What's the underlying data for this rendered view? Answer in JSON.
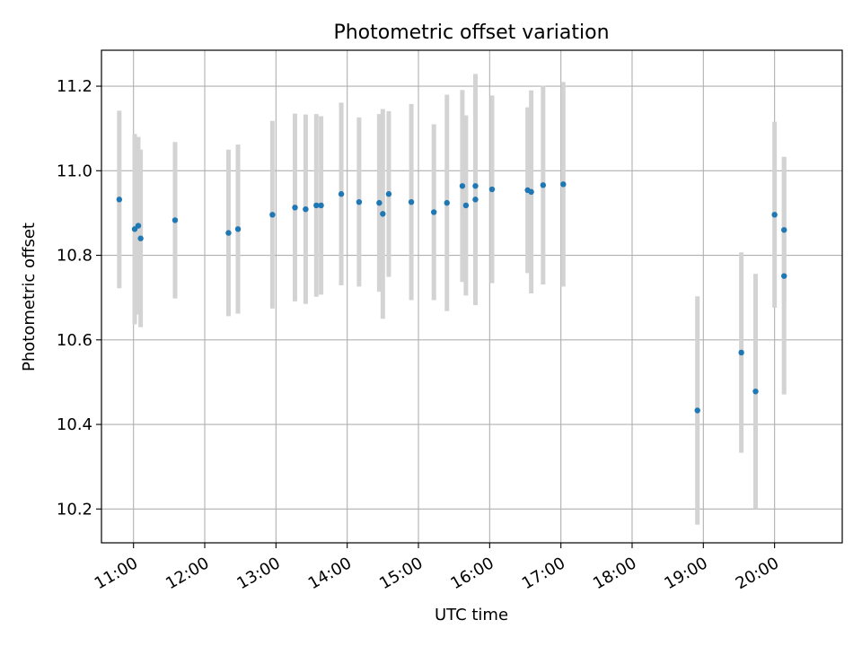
{
  "chart_data": {
    "type": "scatter",
    "title": "Photometric offset variation",
    "xlabel": "UTC time",
    "ylabel": "Photometric offset",
    "x_ticks": [
      "11:00",
      "12:00",
      "13:00",
      "14:00",
      "15:00",
      "16:00",
      "17:00",
      "18:00",
      "19:00",
      "20:00"
    ],
    "y_ticks": [
      "10.2",
      "10.4",
      "10.6",
      "10.8",
      "11.0",
      "11.2"
    ],
    "xlim": [
      "10:33",
      "20:57"
    ],
    "ylim": [
      10.12,
      11.285
    ],
    "grid": true,
    "colors": {
      "point": "#1f77b4",
      "errorbar": "#d3d3d3",
      "grid": "#b0b0b0"
    },
    "points": [
      {
        "t": "10:48",
        "y": 10.932,
        "err": 0.21
      },
      {
        "t": "11:01",
        "y": 10.862,
        "err": 0.225
      },
      {
        "t": "11:04",
        "y": 10.87,
        "err": 0.21
      },
      {
        "t": "11:06",
        "y": 10.84,
        "err": 0.21
      },
      {
        "t": "11:35",
        "y": 10.883,
        "err": 0.185
      },
      {
        "t": "12:20",
        "y": 10.853,
        "err": 0.197
      },
      {
        "t": "12:28",
        "y": 10.862,
        "err": 0.2
      },
      {
        "t": "12:57",
        "y": 10.896,
        "err": 0.222
      },
      {
        "t": "13:16",
        "y": 10.913,
        "err": 0.222
      },
      {
        "t": "13:25",
        "y": 10.909,
        "err": 0.224
      },
      {
        "t": "13:34",
        "y": 10.918,
        "err": 0.216
      },
      {
        "t": "13:38",
        "y": 10.918,
        "err": 0.211
      },
      {
        "t": "13:55",
        "y": 10.945,
        "err": 0.216
      },
      {
        "t": "14:10",
        "y": 10.926,
        "err": 0.2
      },
      {
        "t": "14:27",
        "y": 10.924,
        "err": 0.21
      },
      {
        "t": "14:30",
        "y": 10.898,
        "err": 0.248
      },
      {
        "t": "14:35",
        "y": 10.945,
        "err": 0.196
      },
      {
        "t": "14:54",
        "y": 10.926,
        "err": 0.232
      },
      {
        "t": "15:13",
        "y": 10.902,
        "err": 0.208
      },
      {
        "t": "15:24",
        "y": 10.924,
        "err": 0.256
      },
      {
        "t": "15:37",
        "y": 10.964,
        "err": 0.227
      },
      {
        "t": "15:40",
        "y": 10.918,
        "err": 0.213
      },
      {
        "t": "15:48",
        "y": 10.964,
        "err": 0.265
      },
      {
        "t": "15:48",
        "y": 10.932,
        "err": 0.25
      },
      {
        "t": "16:02",
        "y": 10.956,
        "err": 0.222
      },
      {
        "t": "16:32",
        "y": 10.954,
        "err": 0.196
      },
      {
        "t": "16:35",
        "y": 10.95,
        "err": 0.24
      },
      {
        "t": "16:45",
        "y": 10.966,
        "err": 0.235
      },
      {
        "t": "17:02",
        "y": 10.968,
        "err": 0.242
      },
      {
        "t": "18:55",
        "y": 10.433,
        "err": 0.27
      },
      {
        "t": "19:32",
        "y": 10.57,
        "err": 0.237
      },
      {
        "t": "19:44",
        "y": 10.478,
        "err": 0.278
      },
      {
        "t": "20:00",
        "y": 10.896,
        "err": 0.22
      },
      {
        "t": "20:08",
        "y": 10.86,
        "err": 0.173
      },
      {
        "t": "20:08",
        "y": 10.751,
        "err": 0.28
      }
    ]
  }
}
